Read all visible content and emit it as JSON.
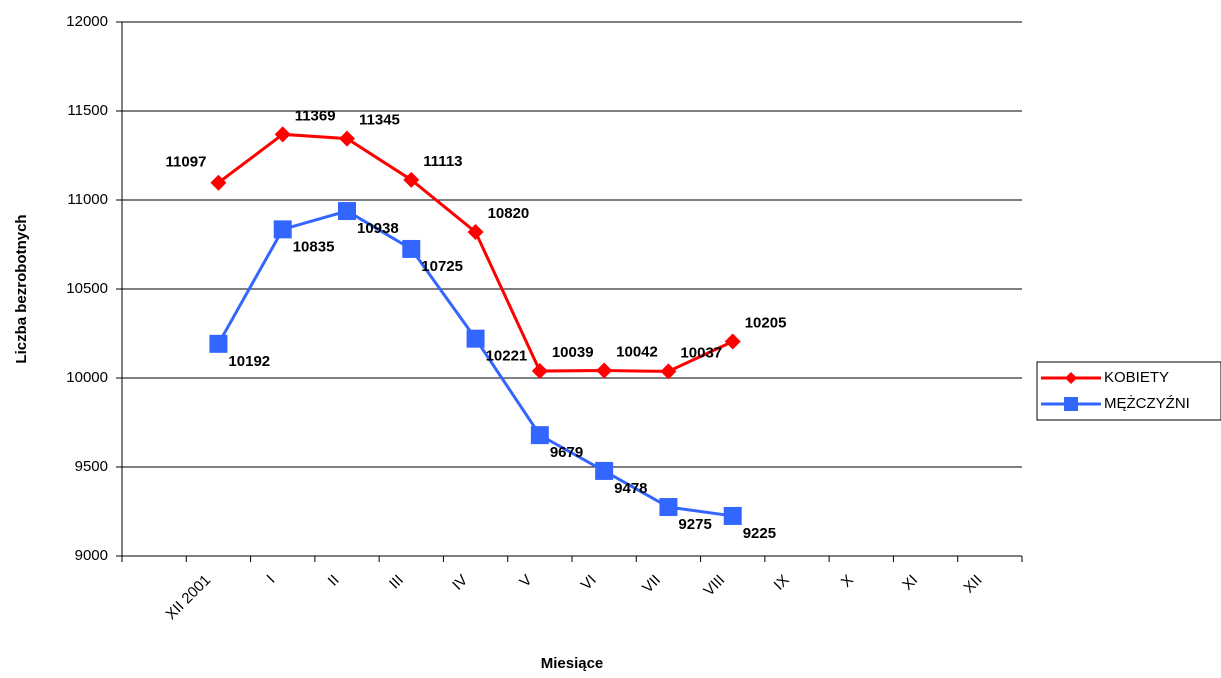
{
  "chart_data": {
    "type": "line",
    "x_label": "Miesiące",
    "y_label": "Liczba bezrobotnych",
    "categories": [
      null,
      "XII 2001",
      "I",
      "II",
      "III",
      "IV",
      "V",
      "VI",
      "VII",
      "VIII",
      "IX",
      "X",
      "XI",
      "XII"
    ],
    "series": [
      {
        "name": "KOBIETY",
        "color": "#ff0000",
        "marker": "diamond",
        "values": [
          null,
          11097,
          11369,
          11345,
          11113,
          10820,
          10039,
          10042,
          10037,
          10205,
          null,
          null,
          null,
          null
        ]
      },
      {
        "name": "MĘŻCZYŹNI",
        "color": "#3366ff",
        "marker": "square",
        "values": [
          null,
          10192,
          10835,
          10938,
          10725,
          10221,
          9679,
          9478,
          9275,
          9225,
          null,
          null,
          null,
          null
        ]
      }
    ],
    "ylim": [
      9000,
      12000
    ],
    "yticks": [
      9000,
      9500,
      10000,
      10500,
      11000,
      11500,
      12000
    ],
    "grid": true,
    "legend": "right"
  }
}
